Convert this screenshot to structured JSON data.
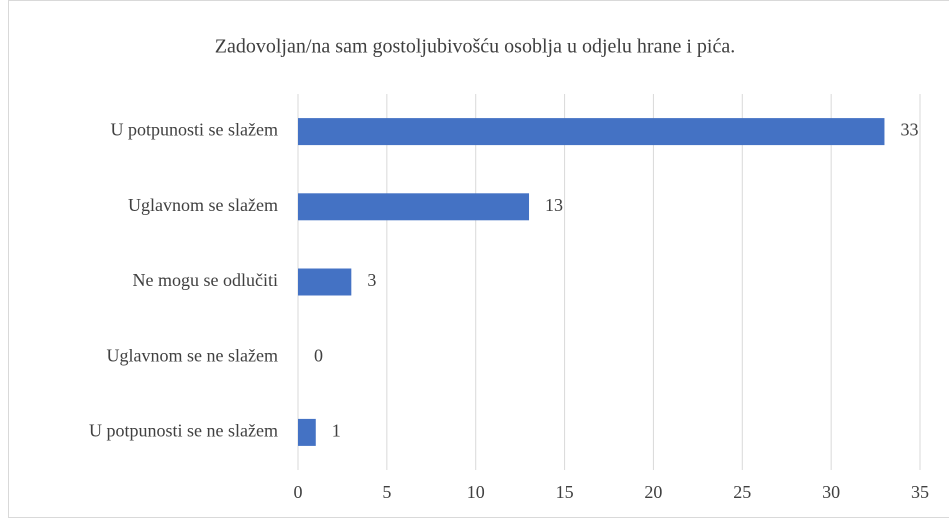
{
  "chart_data": {
    "type": "barh",
    "title": "Zadovoljan/na sam gostoljubivošću osoblja u odjelu hrane i pića.",
    "categories": [
      "U potpunosti se slažem",
      "Uglavnom se slažem",
      "Ne mogu se odlučiti",
      "Uglavnom se ne slažem",
      "U potpunosti se ne slažem"
    ],
    "values": [
      33,
      13,
      3,
      0,
      1
    ],
    "color": "#4472c4",
    "xlim": [
      0,
      35
    ],
    "xticks": [
      0,
      5,
      10,
      15,
      20,
      25,
      30,
      35
    ],
    "grid": true
  }
}
